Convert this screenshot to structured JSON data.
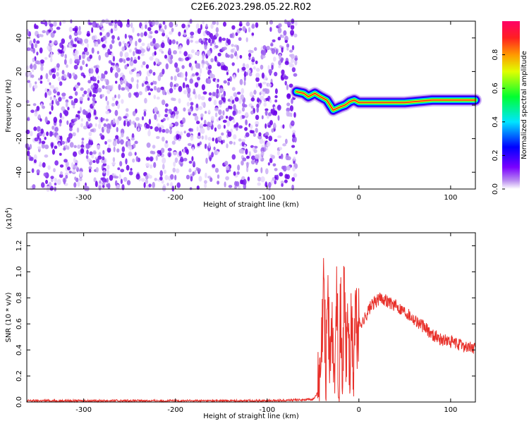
{
  "title": "C2E6.2023.298.05.22.R02",
  "colors": {
    "snr_line": "#e8302a",
    "axis": "#000000",
    "noise_purple": "#8a2be2"
  },
  "chart_data": [
    {
      "type": "heatmap",
      "name": "spectrogram",
      "xlabel": "Height of straight line (km)",
      "ylabel": "Frequency (Hz)",
      "xlim": [
        -362,
        127
      ],
      "ylim": [
        -50,
        50
      ],
      "x_ticks": [
        -300,
        -200,
        -100,
        0,
        100
      ],
      "y_ticks": [
        -40,
        -20,
        0,
        20,
        40
      ],
      "colorbar": {
        "label": "Normalized spectral amplitude",
        "range": [
          0,
          1
        ],
        "ticks": [
          "0.0",
          "0.2",
          "0.4",
          "0.6",
          "0.8"
        ],
        "colormap": "rainbow"
      },
      "noise_region": {
        "x_from": -362,
        "x_to": -68
      },
      "signal_track": [
        {
          "x": -68,
          "y": 8
        },
        {
          "x": -60,
          "y": 7
        },
        {
          "x": -55,
          "y": 5
        },
        {
          "x": -48,
          "y": 7
        },
        {
          "x": -42,
          "y": 5
        },
        {
          "x": -35,
          "y": 3
        },
        {
          "x": -28,
          "y": -3
        },
        {
          "x": -20,
          "y": -1
        },
        {
          "x": -15,
          "y": 0
        },
        {
          "x": -10,
          "y": 2
        },
        {
          "x": -5,
          "y": 3
        },
        {
          "x": 0,
          "y": 1.5
        },
        {
          "x": 20,
          "y": 1.5
        },
        {
          "x": 50,
          "y": 1.5
        },
        {
          "x": 80,
          "y": 3
        },
        {
          "x": 100,
          "y": 3
        },
        {
          "x": 127,
          "y": 3
        }
      ]
    },
    {
      "type": "line",
      "name": "snr",
      "xlabel": "Height of straight line (km)",
      "ylabel": "SNR (10 * v/v)",
      "y_multiplier": "(x10",
      "y_multiplier_exp": "4",
      "y_multiplier_close": ")",
      "xlim": [
        -362,
        127
      ],
      "ylim": [
        0,
        1.3
      ],
      "x_ticks": [
        -300,
        -200,
        -100,
        0,
        100
      ],
      "y_ticks": [
        "0.0",
        "0.2",
        "0.4",
        "0.6",
        "0.8",
        "1.0",
        "1.2"
      ],
      "series": [
        {
          "x": [
            -362,
            -300,
            -200,
            -100,
            -50,
            -42,
            -38,
            -36,
            -34,
            -32,
            -30,
            -28,
            -26,
            -24,
            -22,
            -20,
            -18,
            -16,
            -14,
            -12,
            -10,
            -8,
            -6,
            -4,
            -2,
            0,
            5,
            10,
            15,
            20,
            25,
            30,
            40,
            50,
            60,
            70,
            80,
            90,
            100,
            110,
            120,
            127
          ],
          "y": [
            0.01,
            0.01,
            0.01,
            0.01,
            0.02,
            0.1,
            0.9,
            0.2,
            0.95,
            0.3,
            0.5,
            0.4,
            0.15,
            0.9,
            0.2,
            0.7,
            0.1,
            0.95,
            0.3,
            0.7,
            0.2,
            0.6,
            0.2,
            0.7,
            0.5,
            0.6,
            0.62,
            0.7,
            0.75,
            0.78,
            0.8,
            0.78,
            0.74,
            0.7,
            0.64,
            0.58,
            0.52,
            0.48,
            0.46,
            0.44,
            0.42,
            0.41
          ]
        }
      ]
    }
  ]
}
